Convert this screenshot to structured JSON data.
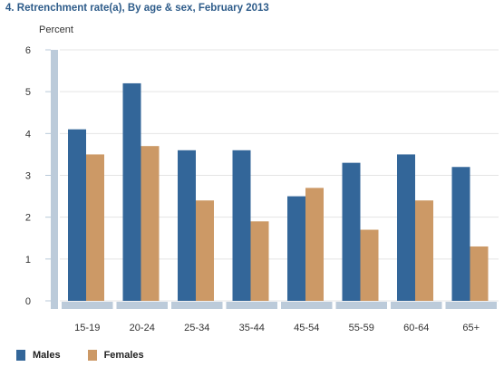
{
  "chart_data": {
    "type": "bar",
    "title": "4. Retrenchment rate(a), By age & sex, February 2013",
    "ylabel": "Percent",
    "xlabel": "",
    "ylim": [
      0,
      6
    ],
    "yticks": [
      0,
      1,
      2,
      3,
      4,
      5,
      6
    ],
    "categories": [
      "15-19",
      "20-24",
      "25-34",
      "35-44",
      "45-54",
      "55-59",
      "60-64",
      "65+"
    ],
    "series": [
      {
        "name": "Males",
        "color": "#336699",
        "values": [
          4.1,
          5.2,
          3.6,
          3.6,
          2.5,
          3.3,
          3.5,
          3.2
        ]
      },
      {
        "name": "Females",
        "color": "#cc9966",
        "values": [
          3.5,
          3.7,
          2.4,
          1.9,
          2.7,
          1.7,
          2.4,
          1.3
        ]
      }
    ],
    "grid": true,
    "legend_position": "bottom-left"
  }
}
